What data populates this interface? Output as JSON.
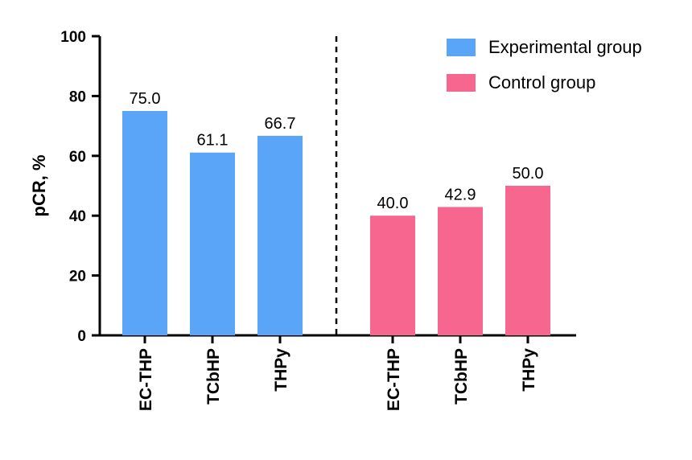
{
  "chart_data": {
    "type": "bar",
    "title": "",
    "ylabel": "pCR, %",
    "xlabel": "",
    "ylim": [
      0,
      100
    ],
    "yticks": [
      "0",
      "20",
      "40",
      "60",
      "80",
      "100"
    ],
    "divider": "dashed vertical line between groups",
    "series": [
      {
        "name": "Experimental group",
        "color": "#5aa5f7",
        "categories": [
          "EC-THP",
          "TCbHP",
          "THPy"
        ],
        "values": [
          75.0,
          61.1,
          66.7
        ],
        "labels": [
          "75.0",
          "61.1",
          "66.7"
        ]
      },
      {
        "name": "Control group",
        "color": "#f7668f",
        "categories": [
          "EC-THP",
          "TCbHP",
          "THPy"
        ],
        "values": [
          40.0,
          42.9,
          50.0
        ],
        "labels": [
          "40.0",
          "42.9",
          "50.0"
        ]
      }
    ],
    "legend_position": "top-right"
  }
}
